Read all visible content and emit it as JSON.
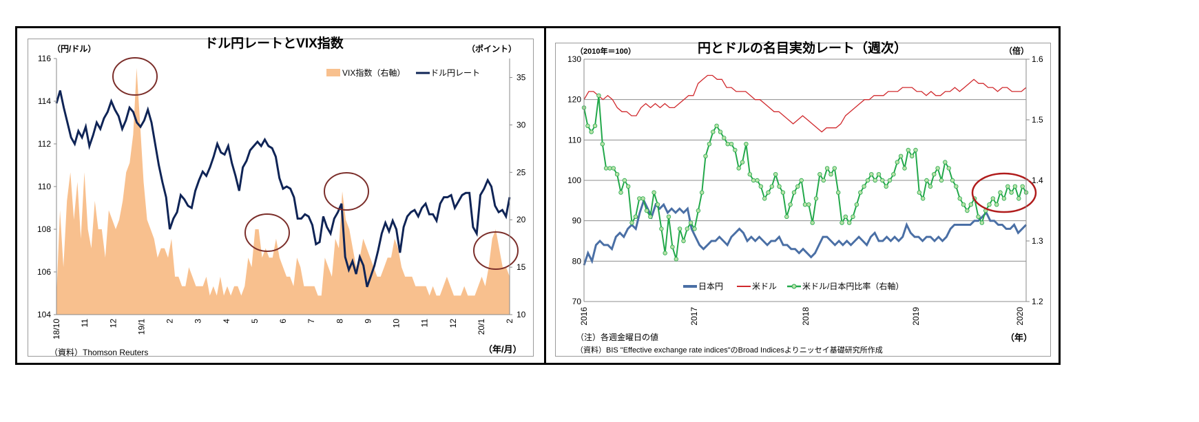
{
  "left_chart": {
    "title": "ドル円レートとVIX指数",
    "left_unit": "（円/ドル）",
    "right_unit": "（ポイント）",
    "x_unit": "（年/月）",
    "source": "（資料）Thomson Reuters",
    "legend": {
      "vix": "VIX指数（右軸）",
      "usdjpy": "ドル円レート"
    },
    "left_ticks": [
      "104",
      "106",
      "108",
      "110",
      "112",
      "114",
      "116"
    ],
    "right_ticks": [
      "10",
      "15",
      "20",
      "25",
      "30",
      "35"
    ],
    "x_ticks": [
      "18/10",
      "11",
      "12",
      "19/1",
      "2",
      "3",
      "4",
      "5",
      "6",
      "7",
      "8",
      "9",
      "10",
      "11",
      "12",
      "20/1",
      "2"
    ]
  },
  "right_chart": {
    "title": "円とドルの名目実効レート（週次）",
    "left_unit": "（2010年＝100）",
    "right_unit": "（倍）",
    "x_unit": "（年）",
    "note": "（注）各週金曜日の値",
    "source": "（資料）BIS \"Effective exchange rate indices\"のBroad Indicesよりニッセイ基礎研究所作成",
    "legend": {
      "jpy": "日本円",
      "usd": "米ドル",
      "ratio": "米ドル/日本円比率（右軸）"
    },
    "left_ticks": [
      "70",
      "80",
      "90",
      "100",
      "110",
      "120",
      "130"
    ],
    "right_ticks": [
      "1.2",
      "1.3",
      "1.4",
      "1.5",
      "1.6"
    ],
    "x_ticks": [
      "2016",
      "2017",
      "2018",
      "2019",
      "2020"
    ]
  },
  "colors": {
    "vix": "#F8C08E",
    "usdjpy": "#0F2456",
    "jpy": "#4A6FA5",
    "usd": "#D0282C",
    "ratio": "#22A84A",
    "ratio_marker": "#B7E2A8",
    "circle": "#7B2E2A",
    "circle_red": "#B01C1C",
    "grid": "#8c8c8c"
  },
  "chart_data": [
    {
      "type": "line",
      "title": "ドル円レートとVIX指数",
      "xlabel": "（年/月）",
      "ylabel": "（円/ドル）",
      "ylabel_right": "（ポイント）",
      "ylim": [
        104,
        116
      ],
      "ylim_right": [
        10,
        37
      ],
      "x_range": [
        "2018-10",
        "2020-02"
      ],
      "categories": [
        "18/10",
        "11",
        "12",
        "19/1",
        "2",
        "3",
        "4",
        "5",
        "6",
        "7",
        "8",
        "9",
        "10",
        "11",
        "12",
        "20/1",
        "2"
      ],
      "series": [
        {
          "name": "ドル円レート",
          "axis": "left",
          "type": "line",
          "values": [
            113.9,
            114.5,
            113.7,
            113.0,
            112.3,
            112.0,
            112.6,
            112.3,
            112.8,
            111.9,
            112.4,
            113.0,
            112.7,
            113.2,
            113.5,
            114.0,
            113.6,
            113.3,
            112.7,
            113.1,
            113.7,
            113.5,
            113.0,
            112.8,
            113.1,
            113.6,
            113.0,
            112.0,
            111.0,
            110.2,
            109.5,
            108.0,
            108.5,
            108.8,
            109.6,
            109.4,
            109.1,
            109.0,
            109.8,
            110.3,
            110.7,
            110.5,
            110.9,
            111.4,
            112.0,
            111.6,
            111.5,
            111.9,
            111.1,
            110.5,
            109.8,
            110.9,
            111.2,
            111.7,
            111.9,
            112.1,
            111.9,
            112.2,
            111.9,
            111.8,
            111.4,
            110.4,
            109.9,
            110.0,
            109.9,
            109.5,
            108.5,
            108.5,
            108.7,
            108.6,
            108.2,
            107.3,
            107.4,
            108.6,
            108.1,
            107.8,
            108.5,
            108.8,
            109.2,
            106.7,
            106.1,
            106.5,
            105.9,
            106.7,
            106.3,
            105.3,
            105.8,
            106.3,
            107.0,
            107.8,
            108.3,
            107.9,
            108.4,
            108.0,
            106.9,
            108.1,
            108.6,
            108.8,
            108.9,
            108.6,
            109.0,
            109.2,
            108.7,
            108.7,
            108.4,
            109.2,
            109.5,
            109.5,
            109.6,
            109.0,
            109.3,
            109.6,
            109.7,
            109.7,
            108.1,
            107.8,
            109.6,
            109.9,
            110.3,
            110.0,
            109.1,
            108.8,
            108.9,
            108.6,
            109.5
          ]
        },
        {
          "name": "VIX指数（右軸）",
          "axis": "right",
          "type": "area",
          "values": [
            12,
            21,
            15,
            22,
            25,
            20,
            24,
            18,
            25,
            19,
            17,
            22,
            19,
            19,
            16,
            21,
            20,
            19,
            20,
            22,
            25,
            26,
            29,
            36,
            30,
            24,
            20,
            19,
            18,
            16,
            17,
            17,
            16,
            18,
            14,
            14,
            13,
            13,
            15,
            14,
            13,
            13,
            13,
            14,
            12,
            13,
            12,
            14,
            12,
            13,
            12,
            13,
            13,
            12,
            13,
            16,
            15,
            19,
            19,
            16,
            17,
            16,
            16,
            18,
            16,
            15,
            14,
            14,
            13,
            16,
            15,
            13,
            13,
            13,
            13,
            12,
            12,
            16,
            15,
            14,
            18,
            17,
            23,
            20,
            19,
            17,
            15,
            16,
            18,
            17,
            16,
            15,
            14,
            14,
            15,
            16,
            16,
            18,
            17,
            15,
            14,
            14,
            14,
            13,
            13,
            13,
            13,
            12,
            13,
            12,
            12,
            13,
            14,
            13,
            12,
            12,
            12,
            13,
            12,
            12,
            12,
            13,
            14,
            13,
            15,
            18,
            19,
            17,
            15,
            15,
            14
          ]
        }
      ]
    },
    {
      "type": "line",
      "title": "円とドルの名目実効レート（週次）",
      "xlabel": "（年）",
      "ylabel": "（2010年＝100）",
      "ylabel_right": "（倍）",
      "ylim": [
        70,
        130
      ],
      "ylim_right": [
        1.2,
        1.6
      ],
      "categories": [
        "2016",
        "2017",
        "2018",
        "2019",
        "2020"
      ],
      "series": [
        {
          "name": "日本円",
          "axis": "left",
          "values": [
            79,
            82,
            80,
            84,
            85,
            84,
            84,
            83,
            86,
            87,
            86,
            88,
            89,
            88,
            92,
            95,
            93,
            91,
            94,
            93,
            94,
            92,
            93,
            92,
            93,
            92,
            93,
            88,
            86,
            84,
            83,
            84,
            85,
            85,
            86,
            85,
            84,
            86,
            87,
            88,
            87,
            85,
            86,
            85,
            86,
            85,
            84,
            85,
            85,
            86,
            84,
            84,
            83,
            83,
            82,
            83,
            82,
            81,
            82,
            84,
            86,
            86,
            85,
            84,
            85,
            84,
            85,
            84,
            85,
            86,
            85,
            84,
            86,
            87,
            85,
            85,
            86,
            85,
            86,
            85,
            86,
            89,
            87,
            86,
            86,
            85,
            86,
            86,
            85,
            86,
            85,
            86,
            88,
            89,
            89,
            89,
            89,
            89,
            90,
            90,
            91,
            92,
            90,
            90,
            89,
            89,
            88,
            88,
            89,
            87,
            88,
            89
          ]
        },
        {
          "name": "米ドル",
          "axis": "left",
          "values": [
            120,
            122,
            122,
            121,
            120,
            121,
            120,
            118,
            117,
            117,
            116,
            116,
            118,
            119,
            118,
            119,
            118,
            119,
            118,
            118,
            119,
            120,
            121,
            121,
            124,
            125,
            126,
            126,
            125,
            125,
            123,
            123,
            122,
            122,
            122,
            121,
            120,
            120,
            119,
            118,
            117,
            117,
            116,
            115,
            114,
            115,
            116,
            115,
            114,
            113,
            112,
            113,
            113,
            113,
            114,
            116,
            117,
            118,
            119,
            120,
            120,
            121,
            121,
            121,
            122,
            122,
            122,
            123,
            123,
            123,
            122,
            122,
            121,
            122,
            121,
            121,
            122,
            122,
            123,
            122,
            123,
            124,
            125,
            124,
            124,
            123,
            123,
            122,
            123,
            123,
            122,
            122,
            122,
            123
          ]
        },
        {
          "name": "米ドル/日本円比率（右軸）",
          "axis": "right",
          "markers": true,
          "values": [
            1.52,
            1.49,
            1.48,
            1.49,
            1.54,
            1.46,
            1.42,
            1.42,
            1.42,
            1.41,
            1.38,
            1.4,
            1.39,
            1.33,
            1.34,
            1.37,
            1.37,
            1.35,
            1.34,
            1.38,
            1.36,
            1.32,
            1.28,
            1.34,
            1.29,
            1.27,
            1.32,
            1.3,
            1.32,
            1.33,
            1.32,
            1.35,
            1.38,
            1.44,
            1.46,
            1.48,
            1.49,
            1.48,
            1.47,
            1.46,
            1.46,
            1.45,
            1.42,
            1.43,
            1.46,
            1.41,
            1.4,
            1.4,
            1.39,
            1.37,
            1.38,
            1.39,
            1.41,
            1.39,
            1.38,
            1.34,
            1.36,
            1.38,
            1.39,
            1.4,
            1.36,
            1.36,
            1.33,
            1.37,
            1.41,
            1.4,
            1.42,
            1.41,
            1.42,
            1.38,
            1.33,
            1.34,
            1.33,
            1.34,
            1.36,
            1.38,
            1.39,
            1.4,
            1.41,
            1.4,
            1.41,
            1.4,
            1.39,
            1.4,
            1.41,
            1.43,
            1.44,
            1.42,
            1.45,
            1.44,
            1.45,
            1.38,
            1.37,
            1.4,
            1.39,
            1.41,
            1.42,
            1.4,
            1.43,
            1.42,
            1.4,
            1.39,
            1.37,
            1.36,
            1.35,
            1.36,
            1.37,
            1.34,
            1.33,
            1.35,
            1.36,
            1.37,
            1.36,
            1.38,
            1.37,
            1.39,
            1.38,
            1.39,
            1.37,
            1.39,
            1.38
          ]
        }
      ]
    }
  ]
}
